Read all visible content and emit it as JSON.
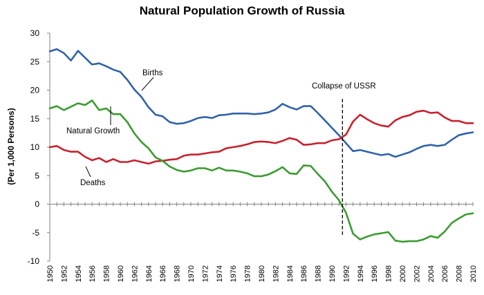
{
  "chart_data": {
    "type": "line",
    "title": "Natural Population Growth of Russia",
    "xlabel": "",
    "ylabel": "(Per 1,000 Persons)",
    "ylim": [
      -10,
      30
    ],
    "yticks": [
      -10,
      -5,
      0,
      5,
      10,
      15,
      20,
      25,
      30
    ],
    "xlim": [
      1950,
      2010
    ],
    "xtick_labels": [
      "1950",
      "1952",
      "1954",
      "1956",
      "1958",
      "1960",
      "1962",
      "1964",
      "1966",
      "1968",
      "1970",
      "1972",
      "1974",
      "1976",
      "1978",
      "1980",
      "1982",
      "1984",
      "1986",
      "1988",
      "1990",
      "1992",
      "1994",
      "1996",
      "1998",
      "2000",
      "2002",
      "2004",
      "2006",
      "2008",
      "2010"
    ],
    "grid": false,
    "legend": "none",
    "x": [
      1950,
      1951,
      1952,
      1953,
      1954,
      1955,
      1956,
      1957,
      1958,
      1959,
      1960,
      1961,
      1962,
      1963,
      1964,
      1965,
      1966,
      1967,
      1968,
      1969,
      1970,
      1971,
      1972,
      1973,
      1974,
      1975,
      1976,
      1977,
      1978,
      1979,
      1980,
      1981,
      1982,
      1983,
      1984,
      1985,
      1986,
      1987,
      1988,
      1989,
      1990,
      1991,
      1992,
      1993,
      1994,
      1995,
      1996,
      1997,
      1998,
      1999,
      2000,
      2001,
      2002,
      2003,
      2004,
      2005,
      2006,
      2007,
      2008,
      2009,
      2010
    ],
    "series": [
      {
        "name": "Births",
        "color": "#2f62a8",
        "values": [
          26.8,
          27.2,
          26.5,
          25.2,
          26.9,
          25.7,
          24.5,
          24.7,
          24.2,
          23.6,
          23.2,
          21.8,
          20.1,
          18.8,
          17.0,
          15.7,
          15.4,
          14.4,
          14.1,
          14.2,
          14.6,
          15.1,
          15.3,
          15.1,
          15.6,
          15.7,
          15.9,
          15.9,
          15.9,
          15.8,
          15.9,
          16.1,
          16.6,
          17.6,
          17.0,
          16.6,
          17.2,
          17.2,
          16.0,
          14.7,
          13.4,
          12.1,
          10.7,
          9.3,
          9.5,
          9.2,
          8.9,
          8.6,
          8.8,
          8.3,
          8.7,
          9.1,
          9.7,
          10.2,
          10.4,
          10.2,
          10.4,
          11.3,
          12.1,
          12.4,
          12.6
        ]
      },
      {
        "name": "Deaths",
        "color": "#c8202e",
        "values": [
          10.0,
          10.2,
          9.5,
          9.2,
          9.2,
          8.3,
          7.7,
          8.1,
          7.4,
          7.9,
          7.4,
          7.4,
          7.7,
          7.4,
          7.1,
          7.5,
          7.6,
          7.8,
          7.9,
          8.5,
          8.7,
          8.7,
          8.9,
          9.1,
          9.2,
          9.8,
          10.0,
          10.2,
          10.5,
          10.9,
          11.0,
          10.9,
          10.7,
          11.1,
          11.6,
          11.3,
          10.4,
          10.5,
          10.7,
          10.7,
          11.2,
          11.4,
          12.2,
          14.5,
          15.7,
          14.9,
          14.2,
          13.8,
          13.6,
          14.7,
          15.3,
          15.6,
          16.2,
          16.4,
          16.0,
          16.1,
          15.2,
          14.6,
          14.6,
          14.2,
          14.2
        ]
      },
      {
        "name": "Natural Growth",
        "color": "#3a9a2f",
        "values": [
          16.8,
          17.2,
          16.5,
          17.1,
          17.7,
          17.4,
          18.2,
          16.5,
          16.8,
          15.8,
          15.8,
          14.4,
          12.4,
          10.9,
          9.8,
          8.2,
          7.6,
          6.6,
          6.0,
          5.7,
          5.9,
          6.3,
          6.3,
          5.9,
          6.4,
          5.9,
          5.9,
          5.7,
          5.4,
          4.9,
          4.9,
          5.2,
          5.8,
          6.5,
          5.4,
          5.3,
          6.8,
          6.7,
          5.3,
          4.0,
          2.2,
          0.7,
          -1.5,
          -5.2,
          -6.2,
          -5.7,
          -5.3,
          -5.1,
          -4.9,
          -6.4,
          -6.6,
          -6.5,
          -6.5,
          -6.2,
          -5.6,
          -5.9,
          -4.8,
          -3.3,
          -2.5,
          -1.8,
          -1.6
        ]
      }
    ],
    "annotations": {
      "births_label": "Births",
      "growth_label": "Natural Growth",
      "deaths_label": "Deaths",
      "collapse_label": "Collapse of USSR",
      "collapse_year": 1991.5
    }
  }
}
